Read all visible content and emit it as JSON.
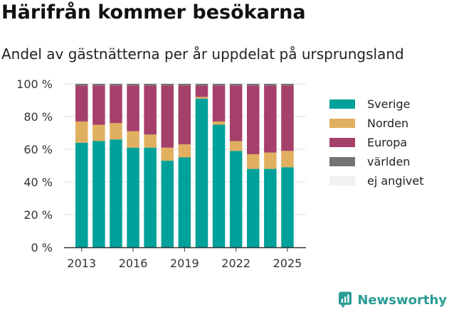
{
  "header": {
    "title": "Härifrån kommer besökarna",
    "subtitle": "Andel av gästnätterna per år uppdelat på ursprungsland"
  },
  "brand": {
    "name": "Newsworthy",
    "icon": "newsworthy-logo-icon",
    "color": "#2a9d95"
  },
  "chart_data": {
    "type": "bar",
    "stacked": true,
    "title": "Härifrån kommer besökarna",
    "subtitle": "Andel av gästnätterna per år uppdelat på ursprungsland",
    "xlabel": "",
    "ylabel": "",
    "categories": [
      2013,
      2014,
      2015,
      2016,
      2017,
      2018,
      2019,
      2020,
      2021,
      2022,
      2023,
      2024,
      2025
    ],
    "x_ticks": [
      "2013",
      "2016",
      "2019",
      "2022",
      "2025"
    ],
    "y_ticks": [
      "0 %",
      "20 %",
      "40 %",
      "60 %",
      "80 %",
      "100 %"
    ],
    "ylim": [
      0,
      100
    ],
    "grid": true,
    "legend_position": "right",
    "series": [
      {
        "name": "Sverige",
        "color": "#00a19a",
        "values": [
          64,
          65,
          66,
          61,
          61,
          53,
          55,
          91,
          75,
          59,
          48,
          48,
          49
        ]
      },
      {
        "name": "Norden",
        "color": "#e0b060",
        "values": [
          13,
          10,
          10,
          10,
          8,
          8,
          8,
          1,
          2,
          6,
          9,
          10,
          10
        ]
      },
      {
        "name": "Europa",
        "color": "#a5406a",
        "values": [
          22,
          24,
          23,
          28,
          30,
          38,
          36,
          7,
          22,
          34,
          42,
          41,
          40
        ]
      },
      {
        "name": "världen",
        "color": "#737373",
        "values": [
          1,
          1,
          1,
          1,
          1,
          1,
          1,
          1,
          1,
          1,
          1,
          1,
          1
        ]
      },
      {
        "name": "ej angivet",
        "color": "#f1f1f1",
        "values": [
          0,
          0,
          0,
          0,
          0,
          0,
          0,
          0,
          0,
          0,
          0,
          0,
          0
        ]
      }
    ]
  }
}
